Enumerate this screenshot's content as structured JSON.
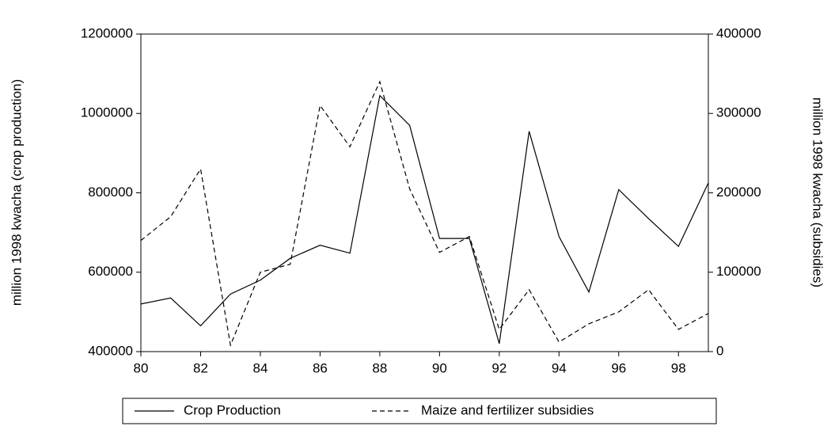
{
  "chart_data": {
    "type": "line",
    "x": [
      80,
      81,
      82,
      83,
      84,
      85,
      86,
      87,
      88,
      89,
      90,
      91,
      92,
      93,
      94,
      95,
      96,
      97,
      98,
      99
    ],
    "xlim": [
      80,
      99
    ],
    "xticks": [
      80,
      82,
      84,
      86,
      88,
      90,
      92,
      94,
      96,
      98
    ],
    "ylim": [
      400000,
      1200000
    ],
    "yticks": [
      400000,
      600000,
      800000,
      1000000,
      1200000
    ],
    "y2lim": [
      0,
      400000
    ],
    "y2ticks": [
      0,
      100000,
      200000,
      300000,
      400000
    ],
    "ylabel": "million 1998 kwacha (crop production)",
    "y2label": "million 1998 kwacha (subsidies)",
    "legend": "bottom",
    "series": [
      {
        "name": "Crop Production",
        "color": "#000000",
        "line_style": "solid",
        "values": [
          520000,
          535000,
          465000,
          545000,
          580000,
          635000,
          668000,
          648000,
          1045000,
          970000,
          685000,
          685000,
          420000,
          955000,
          690000,
          550000,
          808000,
          735000,
          665000,
          825000
        ]
      },
      {
        "name": "Maize and fertilizer subsidies",
        "color": "#000000",
        "line_style": "dashed",
        "axis": "y2",
        "values": [
          140000,
          170000,
          230000,
          8000,
          100000,
          110000,
          310000,
          258000,
          340000,
          205000,
          125000,
          145000,
          28000,
          78000,
          12000,
          35000,
          50000,
          78000,
          28000,
          48000
        ]
      }
    ]
  }
}
